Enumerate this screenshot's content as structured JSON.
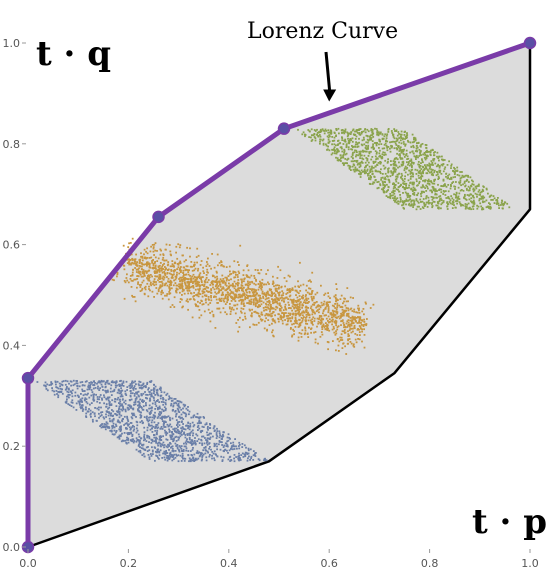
{
  "chart_data": {
    "type": "scatter",
    "title": "",
    "xlabel": "t · p",
    "ylabel": "t · q",
    "xlim": [
      0,
      1
    ],
    "ylim": [
      0,
      1
    ],
    "x_ticks": [
      0.0,
      0.2,
      0.4,
      0.6,
      0.8,
      1.0
    ],
    "y_ticks": [
      0.0,
      0.2,
      0.4,
      0.6,
      0.8,
      1.0
    ],
    "x_tick_labels": [
      "0.0",
      "0.2",
      "0.4",
      "0.6",
      "0.8",
      "1.0"
    ],
    "y_tick_labels": [
      "0.0",
      "0.2",
      "0.4",
      "0.6",
      "0.8",
      "1.0"
    ],
    "grid": false,
    "annotation": {
      "text": "Lorenz Curve",
      "points_to": [
        0.6,
        0.88
      ]
    },
    "colors": {
      "region_fill": "#dcdcdc",
      "region_edge": "#000000",
      "lorenz": "#7a3ba8",
      "lorenz_point": "#5a4fa5",
      "blue": "#6a7fa8",
      "orange": "#c8963f",
      "green": "#8aa34b"
    },
    "zonotope_boundary": [
      [
        0.0,
        0.0
      ],
      [
        0.48,
        0.17
      ],
      [
        0.73,
        0.345
      ],
      [
        1.0,
        0.67
      ],
      [
        1.0,
        1.0
      ],
      [
        0.51,
        0.83
      ],
      [
        0.26,
        0.655
      ],
      [
        0.0,
        0.335
      ]
    ],
    "lorenz_curve": [
      [
        0.0,
        0.0
      ],
      [
        0.0,
        0.335
      ],
      [
        0.26,
        0.655
      ],
      [
        0.51,
        0.83
      ],
      [
        1.0,
        1.0
      ]
    ],
    "clusters": [
      {
        "color_key": "blue",
        "kind": "parallelogram",
        "vertices": [
          [
            0.01,
            0.33
          ],
          [
            0.245,
            0.33
          ],
          [
            0.48,
            0.17
          ],
          [
            0.245,
            0.17
          ]
        ],
        "count": 1500
      },
      {
        "color_key": "orange",
        "kind": "gaussian_band",
        "from": [
          0.195,
          0.56
        ],
        "to": [
          0.665,
          0.44
        ],
        "half_width": 0.045,
        "count": 2000
      },
      {
        "color_key": "green",
        "kind": "parallelogram",
        "vertices": [
          [
            0.53,
            0.83
          ],
          [
            0.75,
            0.83
          ],
          [
            0.98,
            0.67
          ],
          [
            0.75,
            0.67
          ]
        ],
        "count": 1500
      }
    ]
  }
}
